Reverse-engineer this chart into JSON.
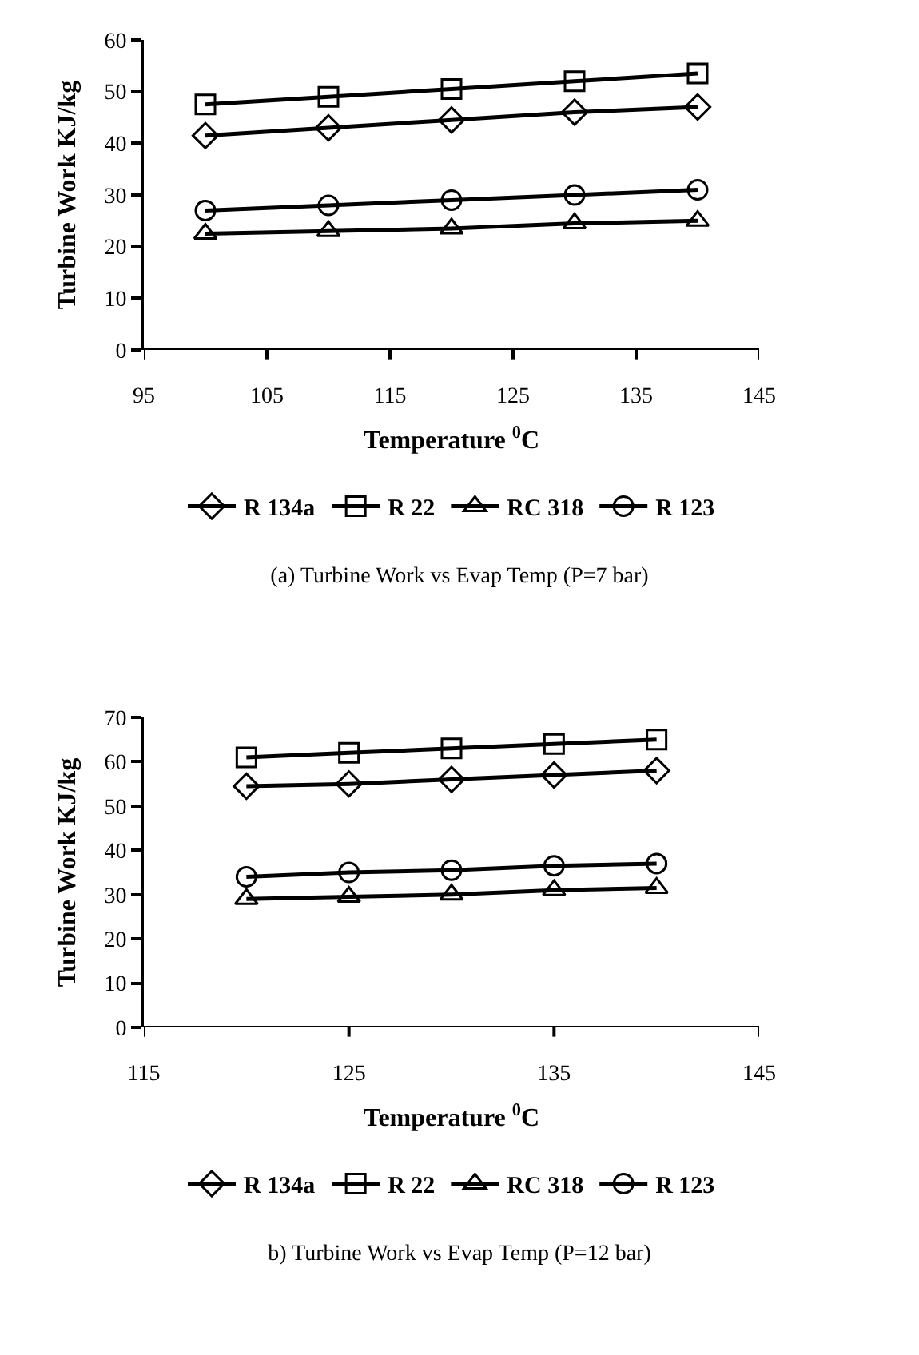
{
  "chart_data": [
    {
      "type": "line",
      "title": "(a) Turbine Work vs Evap Temp (P=7 bar)",
      "xlabel": "Temperature $^{0}$C",
      "ylabel": "Turbine Work KJ/kg",
      "x": [
        100,
        110,
        120,
        130,
        140
      ],
      "xlim": [
        95,
        145
      ],
      "xticks": [
        95,
        105,
        115,
        125,
        135,
        145
      ],
      "ylim": [
        0,
        60
      ],
      "yticks": [
        0,
        10,
        20,
        30,
        40,
        50,
        60
      ],
      "grid": false,
      "legend": "bottom",
      "line_style": "solid",
      "series": [
        {
          "name": "R 134a",
          "color": "#000000",
          "marker": "diamond",
          "values": [
            41.5,
            43,
            44.5,
            46,
            47
          ]
        },
        {
          "name": "R 22",
          "color": "#000000",
          "marker": "square",
          "values": [
            47.5,
            49,
            50.5,
            52,
            53.5
          ]
        },
        {
          "name": "RC 318",
          "color": "#000000",
          "marker": "triangle",
          "values": [
            22.5,
            23,
            23.5,
            24.5,
            25
          ]
        },
        {
          "name": "R 123",
          "color": "#000000",
          "marker": "circle",
          "values": [
            27,
            28,
            29,
            30,
            31
          ]
        }
      ]
    },
    {
      "type": "line",
      "title": "b) Turbine Work vs Evap Temp (P=12 bar)",
      "xlabel": "Temperature $^{0}$C",
      "ylabel": "Turbine Work KJ/kg",
      "x": [
        120,
        125,
        130,
        135,
        140
      ],
      "xlim": [
        115,
        145
      ],
      "xticks": [
        115,
        125,
        135,
        145
      ],
      "ylim": [
        0,
        70
      ],
      "yticks": [
        0,
        10,
        20,
        30,
        40,
        50,
        60,
        70
      ],
      "grid": false,
      "legend": "bottom",
      "line_style": "solid",
      "series": [
        {
          "name": "R 134a",
          "color": "#000000",
          "marker": "diamond",
          "values": [
            54.5,
            55,
            56,
            57,
            58
          ]
        },
        {
          "name": "R 22",
          "color": "#000000",
          "marker": "square",
          "values": [
            61,
            62,
            63,
            64,
            65
          ]
        },
        {
          "name": "RC 318",
          "color": "#000000",
          "marker": "triangle",
          "values": [
            29,
            29.5,
            30,
            31,
            31.5
          ]
        },
        {
          "name": "R 123",
          "color": "#000000",
          "marker": "circle",
          "values": [
            34,
            35,
            35.5,
            36.5,
            37
          ]
        }
      ]
    }
  ]
}
